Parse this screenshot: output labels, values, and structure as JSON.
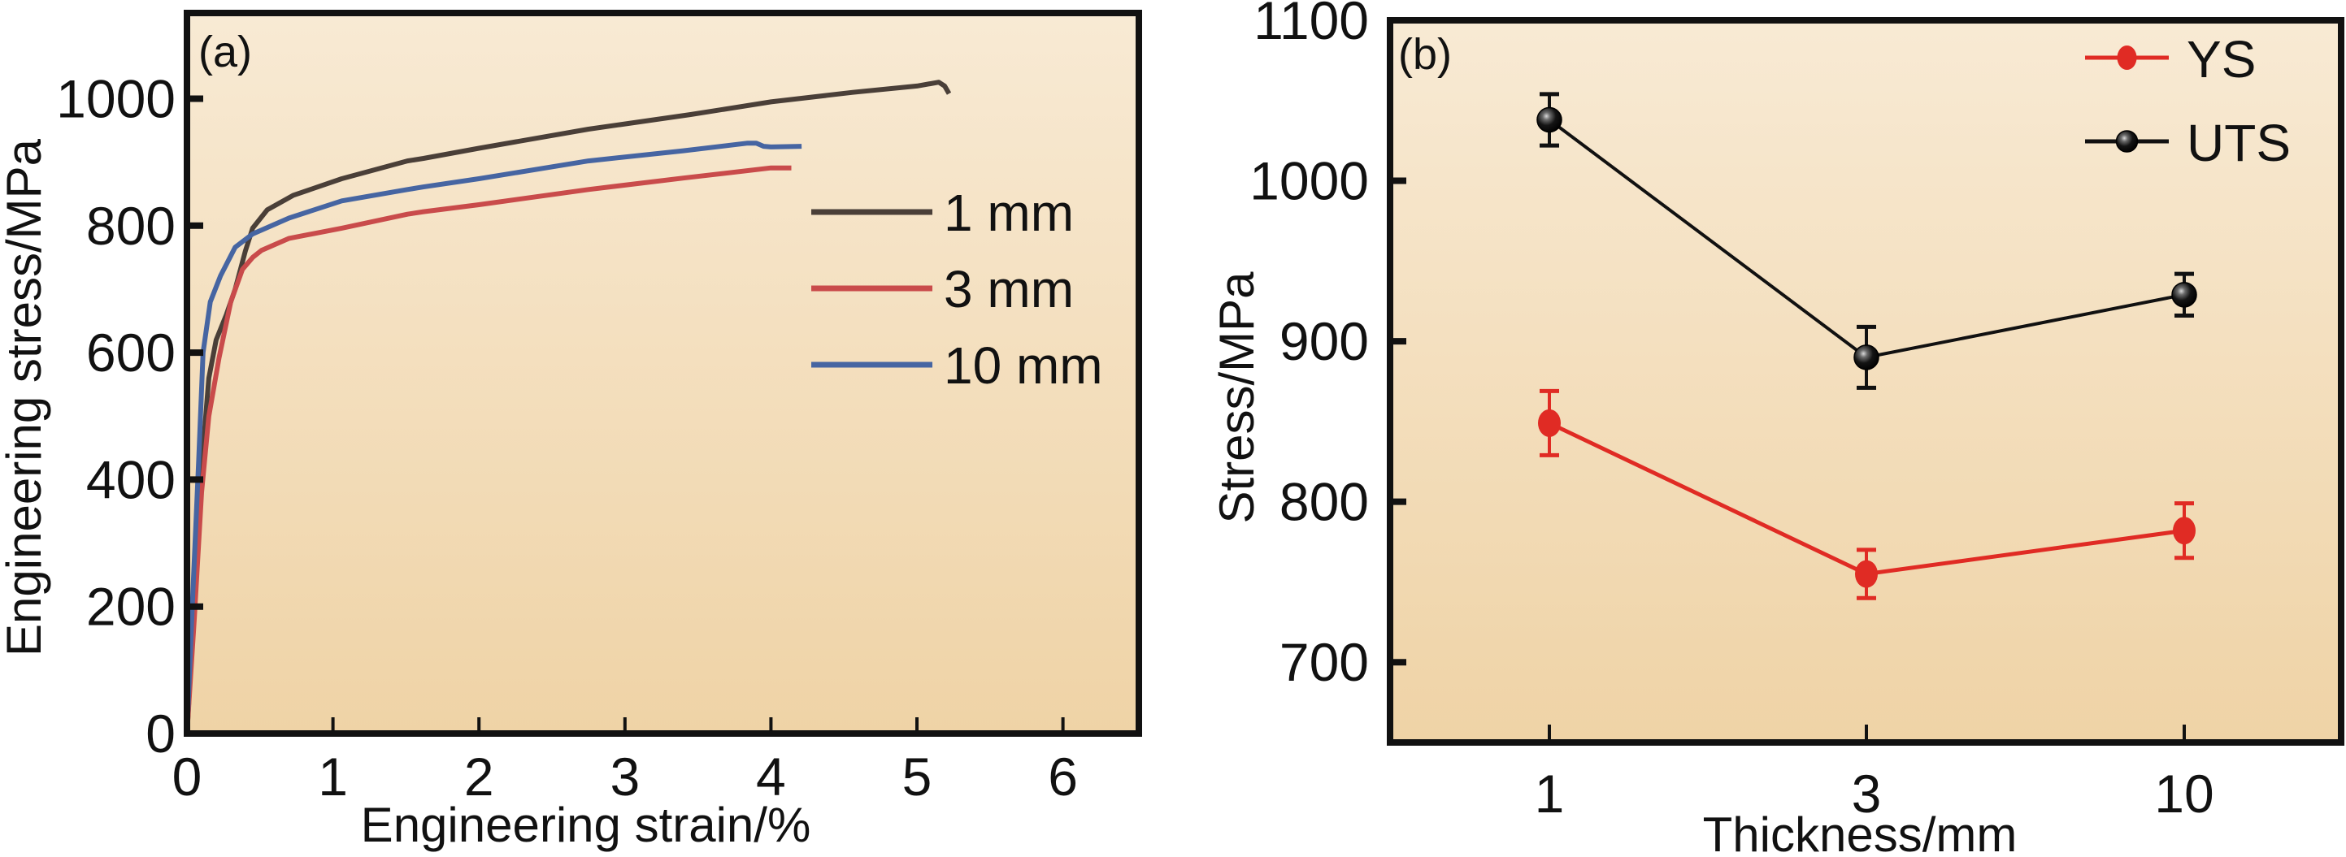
{
  "chart_data": [
    {
      "panel": "(a)",
      "type": "line",
      "xlabel": "Engineering strain/%",
      "ylabel": "Engineering stress/MPa",
      "xlim": [
        0,
        6.52
      ],
      "ylim": [
        0,
        1135
      ],
      "xticks": [
        0,
        1,
        2,
        3,
        4,
        5,
        6
      ],
      "yticks": [
        0,
        200,
        400,
        600,
        800,
        1000
      ],
      "grid": false,
      "legend_position": "center-right",
      "background": [
        "#f8ead4",
        "#efd3a6"
      ],
      "series": [
        {
          "name": "1 mm",
          "color": "#4a3f38",
          "x": [
            0,
            0.05,
            0.1,
            0.15,
            0.2,
            0.27,
            0.33,
            0.4,
            0.45,
            0.55,
            0.73,
            1.06,
            1.51,
            1.62,
            2.0,
            2.75,
            3.45,
            4.0,
            4.56,
            5.0,
            5.15,
            5.19,
            5.22
          ],
          "y": [
            0,
            200,
            420,
            560,
            620,
            660,
            700,
            760,
            796,
            825,
            848,
            874,
            902,
            906,
            922,
            952,
            975,
            995,
            1010,
            1020,
            1026,
            1020,
            1008
          ]
        },
        {
          "name": "3 mm",
          "color": "#c94b4b",
          "x": [
            0,
            0.05,
            0.1,
            0.15,
            0.22,
            0.3,
            0.38,
            0.45,
            0.51,
            0.7,
            1.06,
            1.51,
            1.62,
            2.0,
            2.75,
            3.4,
            4.0,
            4.14
          ],
          "y": [
            0,
            180,
            380,
            500,
            592,
            680,
            731,
            750,
            761,
            780,
            796,
            818,
            822,
            833,
            857,
            875,
            891,
            891
          ]
        },
        {
          "name": "10 mm",
          "color": "#4665a2",
          "x": [
            0,
            0.04,
            0.08,
            0.11,
            0.16,
            0.23,
            0.33,
            0.45,
            0.7,
            1.06,
            1.51,
            1.62,
            2.0,
            2.75,
            3.4,
            3.84,
            3.9,
            3.95,
            4.0,
            4.21
          ],
          "y": [
            0,
            220,
            430,
            600,
            680,
            721,
            766,
            787,
            812,
            839,
            857,
            861,
            874,
            902,
            918,
            930,
            930,
            925,
            924,
            925
          ]
        }
      ]
    },
    {
      "panel": "(b)",
      "type": "line",
      "xlabel": "Thickness/mm",
      "ylabel": "Stress/MPa",
      "categories": [
        "1",
        "3",
        "10"
      ],
      "ylim": [
        650,
        1100
      ],
      "yticks": [
        700,
        800,
        900,
        1000,
        1100
      ],
      "grid": false,
      "legend_position": "top-right",
      "series": [
        {
          "name": "YS",
          "color": "#e02b24",
          "marker": "filled-circle",
          "values": [
            849,
            755,
            782
          ],
          "errors": [
            20,
            15,
            17
          ]
        },
        {
          "name": "UTS",
          "color": "#111111",
          "marker": "glossy-sphere",
          "values": [
            1038,
            890,
            929
          ],
          "errors": [
            16,
            19,
            13
          ]
        }
      ]
    }
  ]
}
